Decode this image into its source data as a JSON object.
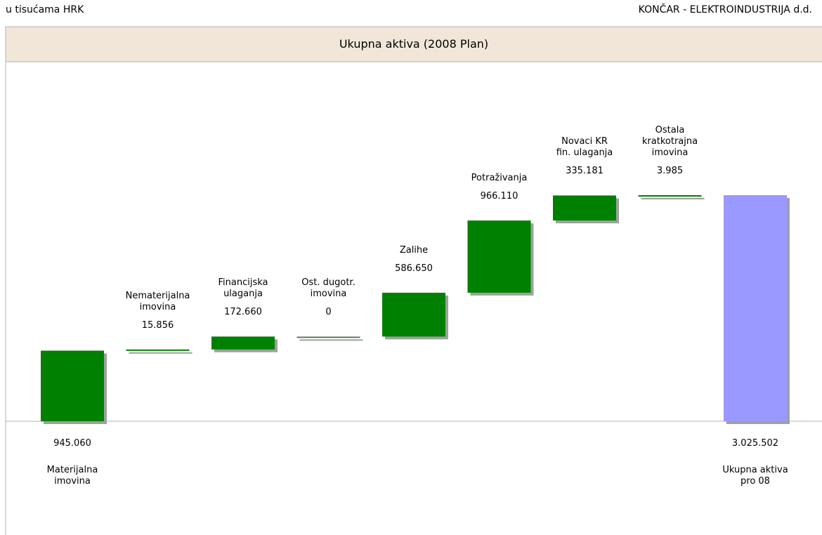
{
  "unit_note": "u tisućama HRK",
  "company": "KONČAR - ELEKTROINDUSTRIJA d.d.",
  "chart_data": {
    "type": "waterfall",
    "title": "Ukupna aktiva (2008 Plan)",
    "categories": [
      "Materijalna\nimovina",
      "Nematerijalna\nimovina",
      "Financijska\nulaganja",
      "Ost. dugotr.\nimovina",
      "Zalihe",
      "Potraživanja",
      "Novaci KR\nfin. ulaganja",
      "Ostala\nkratkotrajna\nimovina",
      "Ukupna aktiva\npro 08"
    ],
    "values": [
      945060,
      15856,
      172660,
      0,
      586650,
      966110,
      335181,
      3985,
      3025502
    ],
    "value_labels": [
      "945.060",
      "15.856",
      "172.660",
      "0",
      "586.650",
      "966.110",
      "335.181",
      "3.985",
      "3.025.502"
    ],
    "color": "#008000",
    "total_color": "#9999ff"
  }
}
